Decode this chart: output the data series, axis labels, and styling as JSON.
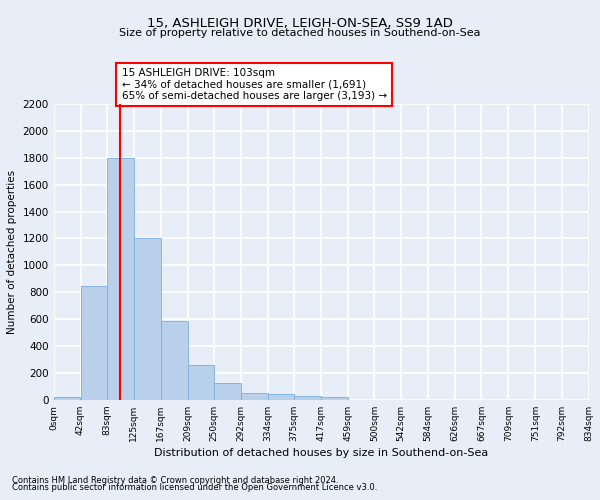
{
  "title_line1": "15, ASHLEIGH DRIVE, LEIGH-ON-SEA, SS9 1AD",
  "title_line2": "Size of property relative to detached houses in Southend-on-Sea",
  "xlabel": "Distribution of detached houses by size in Southend-on-Sea",
  "ylabel": "Number of detached properties",
  "footer_line1": "Contains HM Land Registry data © Crown copyright and database right 2024.",
  "footer_line2": "Contains public sector information licensed under the Open Government Licence v3.0.",
  "bin_edges": [
    0,
    42,
    83,
    125,
    167,
    209,
    250,
    292,
    334,
    375,
    417,
    459,
    500,
    542,
    584,
    626,
    667,
    709,
    751,
    792,
    834
  ],
  "bar_heights": [
    25,
    850,
    1800,
    1200,
    590,
    260,
    125,
    50,
    45,
    30,
    20,
    0,
    0,
    0,
    0,
    0,
    0,
    0,
    0,
    0
  ],
  "bar_color": "#b8d0ea",
  "bar_edgecolor": "#7aafe0",
  "vline_x": 103,
  "vline_color": "red",
  "annotation_text": "15 ASHLEIGH DRIVE: 103sqm\n← 34% of detached houses are smaller (1,691)\n65% of semi-detached houses are larger (3,193) →",
  "annotation_box_color": "white",
  "annotation_box_edgecolor": "red",
  "ylim_max": 2200,
  "tick_labels": [
    "0sqm",
    "42sqm",
    "83sqm",
    "125sqm",
    "167sqm",
    "209sqm",
    "250sqm",
    "292sqm",
    "334sqm",
    "375sqm",
    "417sqm",
    "459sqm",
    "500sqm",
    "542sqm",
    "584sqm",
    "626sqm",
    "667sqm",
    "709sqm",
    "751sqm",
    "792sqm",
    "834sqm"
  ],
  "background_color": "#e8eef8",
  "grid_color": "white",
  "yticks": [
    0,
    200,
    400,
    600,
    800,
    1000,
    1200,
    1400,
    1600,
    1800,
    2000,
    2200
  ]
}
